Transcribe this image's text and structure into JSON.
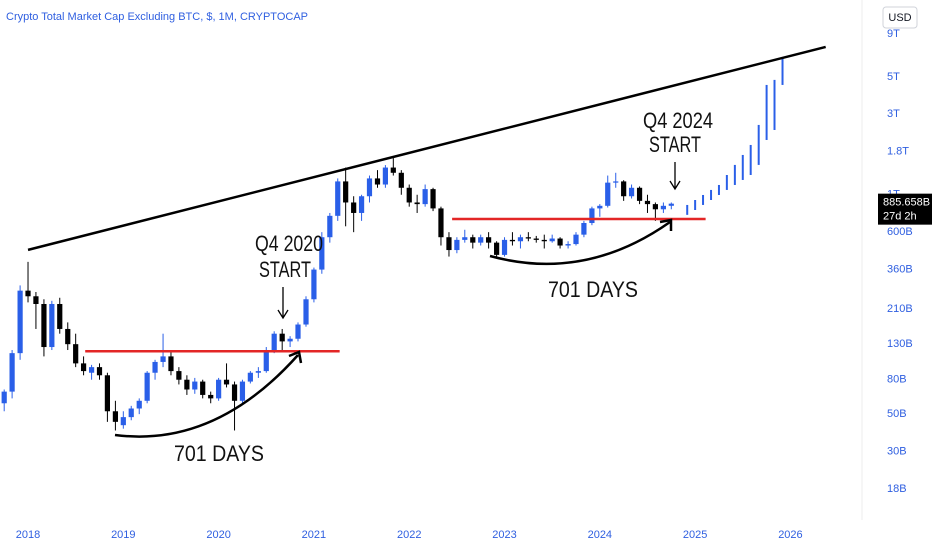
{
  "chart_data": {
    "type": "candlestick",
    "title": "Crypto Total Market Cap Excluding BTC, $, 1M, CRYPTOCAP",
    "currency": "USD",
    "log_scale": true,
    "grid": false,
    "up_color": "#2a5fe8",
    "down_color": "#000000",
    "xlim": [
      2017.706,
      2026.73
    ],
    "xticks": [
      2018,
      2019,
      2020,
      2021,
      2022,
      2023,
      2024,
      2025,
      2026
    ],
    "ylim": [
      11.78,
      14290
    ],
    "yticks": [
      {
        "value": 9000,
        "label": "9T"
      },
      {
        "value": 5000,
        "label": "5T"
      },
      {
        "value": 3000,
        "label": "3T"
      },
      {
        "value": 1800,
        "label": "1.8T"
      },
      {
        "value": 1000,
        "label": "1T"
      },
      {
        "value": 600,
        "label": "600B"
      },
      {
        "value": 360,
        "label": "360B"
      },
      {
        "value": 210,
        "label": "210B"
      },
      {
        "value": 130,
        "label": "130B"
      },
      {
        "value": 80,
        "label": "80B"
      },
      {
        "value": 50,
        "label": "50B"
      },
      {
        "value": 30,
        "label": "30B"
      },
      {
        "value": 18,
        "label": "18B"
      }
    ],
    "x": [
      2017.75,
      2017.833,
      2017.917,
      2018,
      2018.083,
      2018.167,
      2018.25,
      2018.333,
      2018.417,
      2018.5,
      2018.583,
      2018.667,
      2018.75,
      2018.833,
      2018.917,
      2019,
      2019.083,
      2019.167,
      2019.25,
      2019.333,
      2019.417,
      2019.5,
      2019.583,
      2019.667,
      2019.75,
      2019.833,
      2019.917,
      2020,
      2020.083,
      2020.167,
      2020.25,
      2020.333,
      2020.417,
      2020.5,
      2020.583,
      2020.667,
      2020.75,
      2020.833,
      2020.917,
      2021,
      2021.083,
      2021.167,
      2021.25,
      2021.333,
      2021.417,
      2021.5,
      2021.583,
      2021.667,
      2021.75,
      2021.833,
      2021.917,
      2022,
      2022.083,
      2022.167,
      2022.25,
      2022.333,
      2022.417,
      2022.5,
      2022.583,
      2022.667,
      2022.75,
      2022.833,
      2022.917,
      2023,
      2023.083,
      2023.167,
      2023.25,
      2023.333,
      2023.417,
      2023.5,
      2023.583,
      2023.667,
      2023.75,
      2023.833,
      2023.917,
      2024,
      2024.083,
      2024.167,
      2024.25,
      2024.333,
      2024.417,
      2024.5,
      2024.583,
      2024.667,
      2024.75
    ],
    "open": [
      58,
      68,
      115,
      270,
      250,
      225,
      125,
      225,
      160,
      130,
      100,
      88,
      95,
      85,
      52,
      43,
      48,
      54,
      60,
      88,
      102,
      110,
      90,
      80,
      70,
      78,
      65,
      62,
      80,
      75,
      60,
      78,
      88,
      90,
      120,
      150,
      135,
      140,
      170,
      240,
      360,
      560,
      750,
      1200,
      900,
      780,
      980,
      1250,
      1150,
      1450,
      1350,
      1100,
      900,
      880,
      1080,
      830,
      560,
      470,
      540,
      560,
      520,
      560,
      520,
      440,
      540,
      530,
      560,
      550,
      540,
      530,
      550,
      500,
      510,
      580,
      680,
      830,
      860,
      1180,
      1200,
      980,
      1100,
      920,
      880,
      820,
      860
    ],
    "high": [
      70,
      120,
      290,
      400,
      265,
      240,
      235,
      245,
      175,
      150,
      110,
      98,
      100,
      88,
      60,
      52,
      56,
      62,
      90,
      105,
      150,
      118,
      95,
      85,
      82,
      80,
      68,
      82,
      100,
      78,
      80,
      90,
      95,
      125,
      155,
      160,
      145,
      175,
      250,
      370,
      600,
      780,
      1250,
      1450,
      980,
      1000,
      1300,
      1400,
      1500,
      1650,
      1400,
      1150,
      1000,
      1150,
      1100,
      850,
      600,
      560,
      620,
      580,
      580,
      600,
      530,
      560,
      600,
      580,
      600,
      570,
      580,
      580,
      560,
      530,
      600,
      700,
      850,
      880,
      1300,
      1350,
      1220,
      1150,
      1120,
      1000,
      900,
      900,
      900
    ],
    "low": [
      52,
      62,
      105,
      230,
      160,
      110,
      120,
      150,
      120,
      95,
      85,
      80,
      80,
      45,
      40,
      41,
      46,
      50,
      58,
      80,
      95,
      85,
      75,
      65,
      66,
      62,
      58,
      60,
      72,
      40,
      58,
      76,
      82,
      88,
      115,
      120,
      125,
      135,
      165,
      230,
      340,
      520,
      700,
      650,
      600,
      700,
      900,
      1100,
      1100,
      1300,
      1000,
      850,
      780,
      850,
      800,
      500,
      430,
      450,
      520,
      480,
      500,
      480,
      420,
      430,
      500,
      480,
      530,
      520,
      480,
      520,
      480,
      480,
      500,
      560,
      660,
      740,
      840,
      1100,
      920,
      950,
      880,
      780,
      700,
      780,
      820
    ],
    "close": [
      68,
      115,
      270,
      250,
      225,
      125,
      225,
      160,
      130,
      100,
      90,
      95,
      85,
      52,
      45,
      48,
      54,
      60,
      88,
      102,
      110,
      90,
      80,
      70,
      78,
      65,
      62,
      80,
      75,
      60,
      78,
      88,
      90,
      120,
      150,
      135,
      140,
      170,
      240,
      360,
      560,
      750,
      1200,
      900,
      780,
      980,
      1250,
      1150,
      1450,
      1350,
      1100,
      900,
      880,
      1080,
      830,
      560,
      470,
      540,
      560,
      520,
      560,
      520,
      440,
      540,
      530,
      560,
      550,
      540,
      530,
      550,
      500,
      510,
      580,
      680,
      830,
      860,
      1180,
      1200,
      980,
      1100,
      920,
      880,
      820,
      860,
      885.658
    ],
    "projection": {
      "color": "#2a5fe8",
      "x": [
        2024.917,
        2025,
        2025.083,
        2025.167,
        2025.25,
        2025.333,
        2025.417,
        2025.5,
        2025.583,
        2025.667,
        2025.75,
        2025.833,
        2025.917
      ],
      "low": [
        760,
        812,
        870,
        931,
        997,
        1068,
        1143,
        1224,
        1310,
        1503,
        2113,
        2422,
        4480
      ],
      "high": [
        870,
        931,
        997,
        1068,
        1143,
        1310,
        1503,
        1722,
        1974,
        2595,
        4480,
        4800,
        6560
      ]
    },
    "trendline": {
      "color": "#000000",
      "x": [
        2018,
        2026.37
      ],
      "values": [
        471,
        7530
      ]
    },
    "support_lines": [
      {
        "color": "#e32626",
        "x": [
          2018.6,
          2021.27
        ],
        "value": 118
      },
      {
        "color": "#e32626",
        "x": [
          2022.45,
          2025.11
        ],
        "value": 718
      }
    ],
    "last_price": {
      "value": 885.658,
      "label": "885.658B"
    },
    "countdown": "27d 2h",
    "annotations": [
      "Q4 2020",
      "START",
      "701 DAYS",
      "Q4 2024",
      "START",
      "701 DAYS"
    ]
  }
}
